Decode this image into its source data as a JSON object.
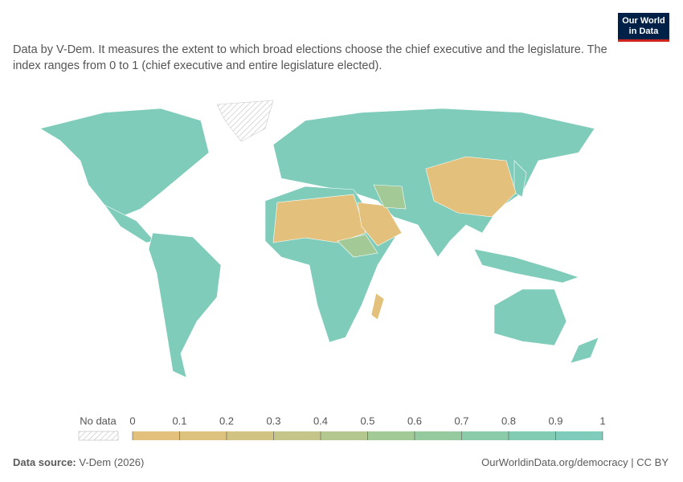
{
  "logo": {
    "line1": "Our World",
    "line2": "in Data"
  },
  "chart_data": {
    "type": "map",
    "subtitle": "Data by V-Dem. It measures the extent to which broad elections choose the chief executive and the legislature. The index ranges from 0 to 1 (chief executive and entire legislature elected).",
    "legend": {
      "no_data_label": "No data",
      "ticks": [
        0,
        0.1,
        0.2,
        0.3,
        0.4,
        0.5,
        0.6,
        0.7,
        0.8,
        0.9,
        1
      ],
      "colors": [
        "#e3c17c",
        "#dcc27e",
        "#d1c482",
        "#c3c688",
        "#b3c78f",
        "#a3c996",
        "#95ca9e",
        "#8acbaa",
        "#83ccb4",
        "#7fccbb"
      ]
    },
    "source_label": "Data source:",
    "source": "V-Dem (2026)",
    "url": "OurWorldinData.org/democracy | CC BY"
  }
}
